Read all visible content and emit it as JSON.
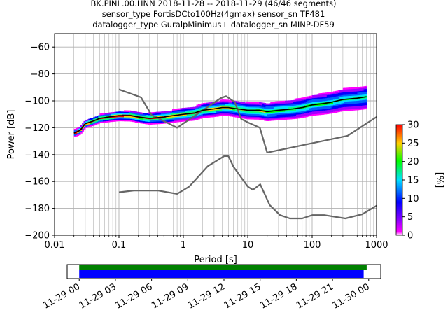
{
  "title": {
    "line1": "BK.PINL.00.HNN   2018-11-28 -- 2018-11-29  (46/46 segments)",
    "line2": "sensor_type FortisDCto100Hz(4gmax) sensor_sn TF481",
    "line3": "datalogger_type GuralpMinimus+ datalogger_sn MINP-DF59"
  },
  "chart_data": {
    "type": "heatmap",
    "xlabel": "Period [s]",
    "ylabel": "Power [dB]",
    "xscale": "log",
    "xlim": [
      0.01,
      1000
    ],
    "ylim": [
      -200,
      -50
    ],
    "xticks": [
      {
        "value": 0.01,
        "label": "0.01"
      },
      {
        "value": 0.1,
        "label": "0.1"
      },
      {
        "value": 1,
        "label": "1"
      },
      {
        "value": 10,
        "label": "10"
      },
      {
        "value": 100,
        "label": "100"
      },
      {
        "value": 1000,
        "label": "1000"
      }
    ],
    "yticks": [
      {
        "value": -60,
        "label": "−60"
      },
      {
        "value": -80,
        "label": "−80"
      },
      {
        "value": -100,
        "label": "−100"
      },
      {
        "value": -120,
        "label": "−120"
      },
      {
        "value": -140,
        "label": "−140"
      },
      {
        "value": -160,
        "label": "−160"
      },
      {
        "value": -180,
        "label": "−180"
      },
      {
        "value": -200,
        "label": "−200"
      }
    ],
    "grid": true,
    "mean_curve": {
      "x": [
        0.02,
        0.025,
        0.03,
        0.04,
        0.05,
        0.07,
        0.1,
        0.15,
        0.2,
        0.3,
        0.5,
        0.7,
        1,
        1.5,
        2,
        3,
        4,
        5,
        7,
        10,
        15,
        20,
        30,
        50,
        70,
        100,
        150,
        200,
        300,
        500,
        700
      ],
      "y": [
        -124,
        -122,
        -117,
        -115,
        -113,
        -112,
        -111,
        -111,
        -112,
        -113,
        -112,
        -111,
        -110,
        -109,
        -107,
        -106,
        -105,
        -105,
        -106,
        -107,
        -107,
        -108,
        -107,
        -106,
        -105,
        -103,
        -102,
        -101,
        -99,
        -98,
        -97
      ]
    },
    "high_noise_model": {
      "x": [
        0.1,
        0.22,
        0.32,
        0.8,
        3.8,
        4.6,
        6.3,
        7.9,
        10,
        15.4,
        20,
        354.8,
        1000
      ],
      "y": [
        -91.5,
        -97.4,
        -110.5,
        -120,
        -98,
        -96.5,
        -101,
        -113.5,
        -116,
        -120,
        -138.5,
        -126,
        -112
      ]
    },
    "low_noise_model": {
      "x": [
        0.1,
        0.17,
        0.4,
        0.8,
        1.24,
        2.4,
        4.3,
        5,
        6,
        10,
        12,
        15.6,
        21.9,
        31.6,
        45,
        70,
        101,
        154,
        328,
        600,
        1000
      ],
      "y": [
        -168,
        -166.7,
        -166.7,
        -169.2,
        -163.7,
        -148.6,
        -141.1,
        -141.1,
        -149,
        -163.8,
        -166.2,
        -162.1,
        -177.5,
        -185,
        -187.5,
        -187.5,
        -185,
        -185,
        -187.5,
        -184.4,
        -178
      ]
    },
    "colorbar": {
      "label": "[%]",
      "range": [
        0,
        30
      ],
      "ticks": [
        {
          "value": 0,
          "label": "0"
        },
        {
          "value": 5,
          "label": "5"
        },
        {
          "value": 10,
          "label": "10"
        },
        {
          "value": 15,
          "label": "15"
        },
        {
          "value": 20,
          "label": "20"
        },
        {
          "value": 25,
          "label": "25"
        },
        {
          "value": 30,
          "label": "30"
        }
      ]
    },
    "timeline": {
      "start": "2018-11-29T00:00",
      "end": "2018-11-30T00:00",
      "xlim": [
        "2018-11-28T23:00",
        "2018-11-30T01:00"
      ],
      "ticks": [
        "11-29 00",
        "11-29 03",
        "11-29 06",
        "11-29 09",
        "11-29 12",
        "11-29 15",
        "11-29 18",
        "11-29 21",
        "11-30 00"
      ],
      "bars": [
        {
          "color": "#008000",
          "start": "2018-11-29T00:00",
          "end": "2018-11-29T23:50"
        },
        {
          "color": "#0000ff",
          "start": "2018-11-29T00:00",
          "end": "2018-11-29T23:35"
        }
      ]
    }
  }
}
